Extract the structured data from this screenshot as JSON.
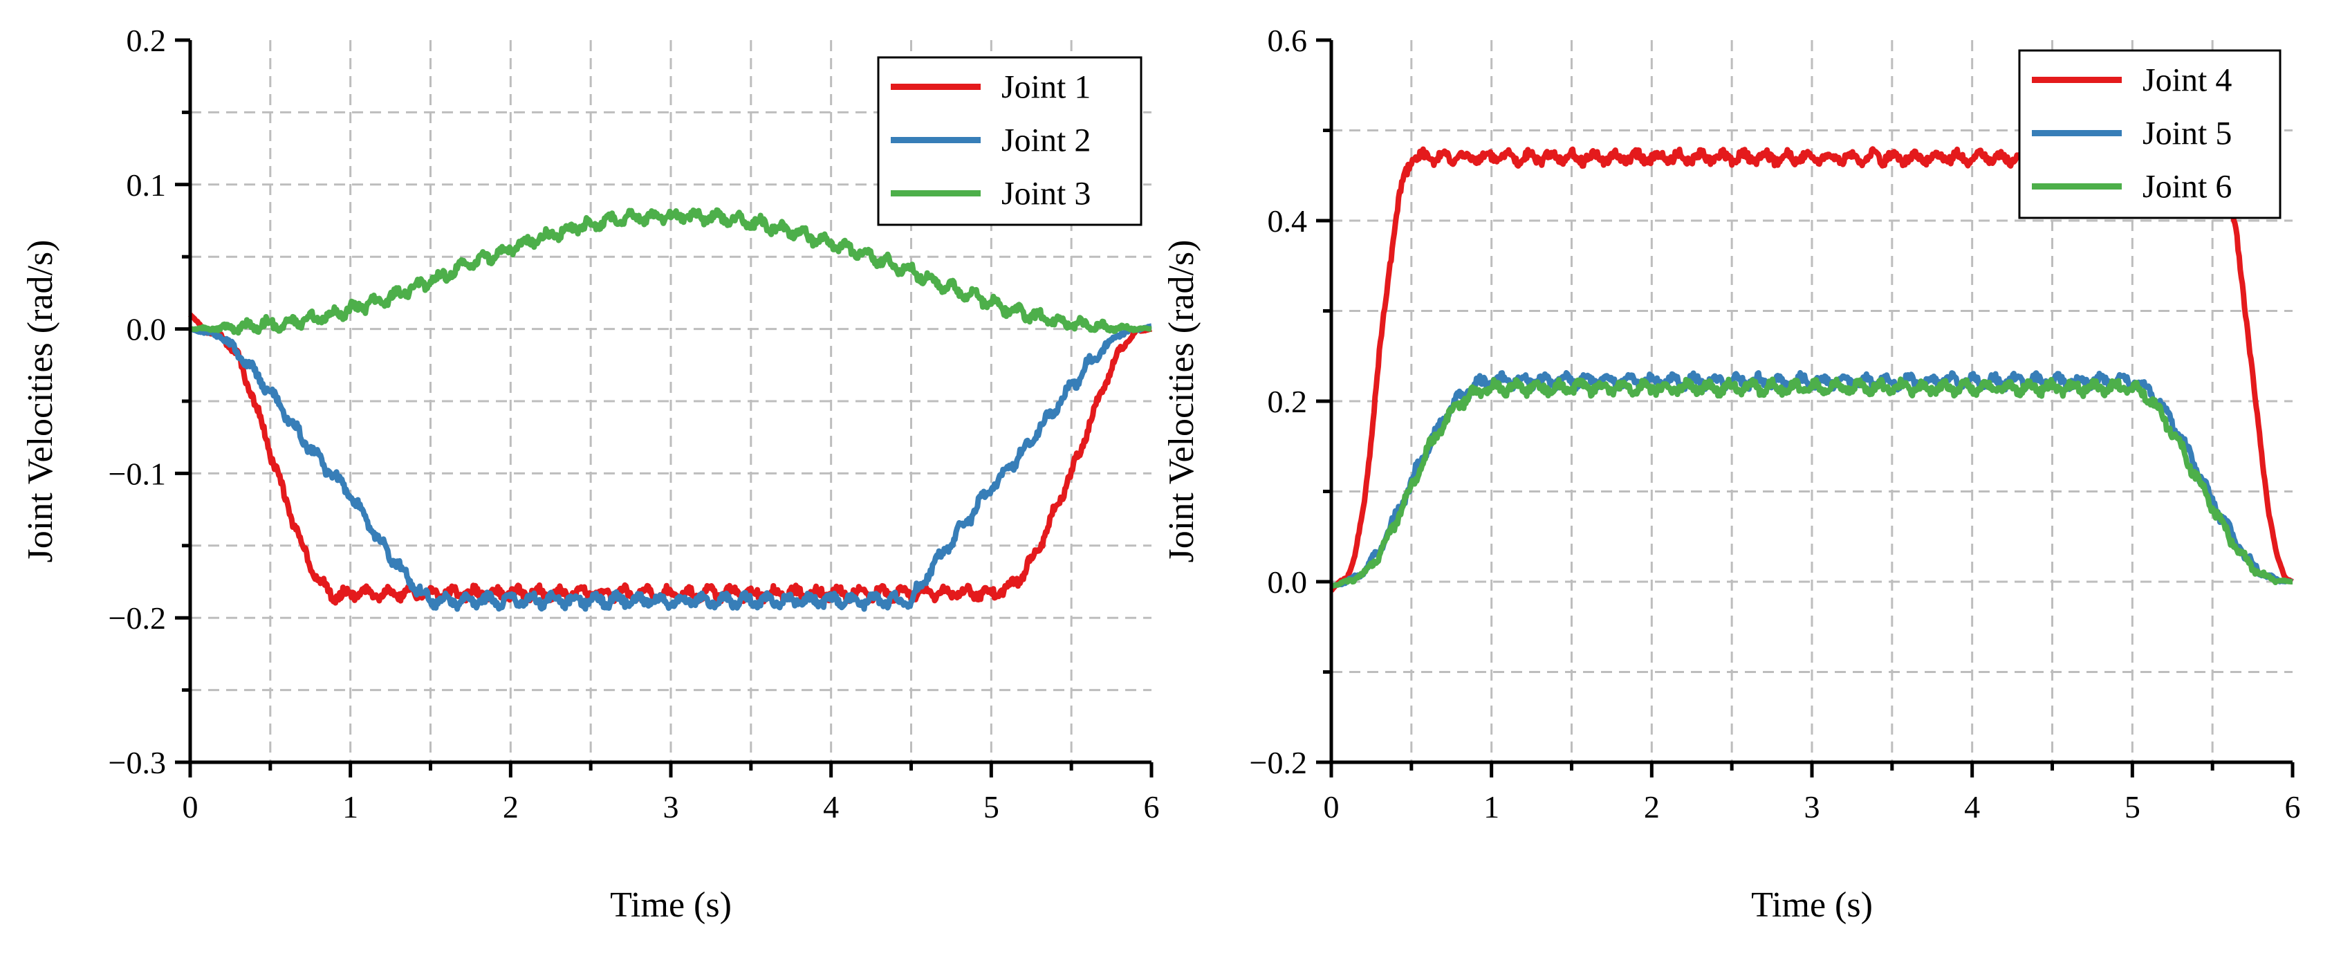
{
  "colors": {
    "joint1": "#e41a1c",
    "joint2": "#377eb8",
    "joint3": "#4daf4a",
    "grid": "#bdbdbd",
    "axis": "#000000"
  },
  "chart_data": [
    {
      "type": "line",
      "xlabel": "Time (s)",
      "ylabel": "Joint Velocities (rad/s)",
      "xlim": [
        0,
        6
      ],
      "ylim": [
        -0.3,
        0.2
      ],
      "xticks": [
        0,
        1,
        2,
        3,
        4,
        5,
        6
      ],
      "xtick_labels": [
        "0",
        "1",
        "2",
        "3",
        "4",
        "5",
        "6"
      ],
      "yticks": [
        -0.3,
        -0.2,
        -0.1,
        0.0,
        0.1,
        0.2
      ],
      "ytick_labels": [
        "−0.3",
        "−0.2",
        "−0.1",
        "0.0",
        "0.1",
        "0.2"
      ],
      "grid": true,
      "legend_position": "top-right",
      "series": [
        {
          "name": "Joint 1",
          "color": "#e41a1c",
          "x": [
            0,
            0.1,
            0.2,
            0.3,
            0.4,
            0.5,
            0.6,
            0.7,
            0.8,
            0.9,
            1.0,
            1.5,
            2.0,
            2.5,
            3.0,
            3.5,
            4.0,
            4.5,
            5.0,
            5.1,
            5.2,
            5.3,
            5.4,
            5.5,
            5.6,
            5.7,
            5.8,
            5.9,
            6.0
          ],
          "y": [
            0.01,
            -0.002,
            -0.005,
            -0.02,
            -0.05,
            -0.085,
            -0.12,
            -0.15,
            -0.175,
            -0.185,
            -0.183,
            -0.183,
            -0.183,
            -0.183,
            -0.183,
            -0.183,
            -0.183,
            -0.183,
            -0.183,
            -0.18,
            -0.17,
            -0.15,
            -0.125,
            -0.1,
            -0.07,
            -0.04,
            -0.015,
            -0.002,
            0.0
          ]
        },
        {
          "name": "Joint 2",
          "color": "#377eb8",
          "x": [
            0,
            0.2,
            0.4,
            0.6,
            0.8,
            1.0,
            1.2,
            1.4,
            1.5,
            2.0,
            2.5,
            3.0,
            3.5,
            4.0,
            4.5,
            4.6,
            4.8,
            5.0,
            5.2,
            5.4,
            5.6,
            5.8,
            6.0
          ],
          "y": [
            0.0,
            -0.005,
            -0.03,
            -0.06,
            -0.09,
            -0.115,
            -0.15,
            -0.178,
            -0.188,
            -0.188,
            -0.188,
            -0.188,
            -0.188,
            -0.188,
            -0.188,
            -0.17,
            -0.14,
            -0.11,
            -0.085,
            -0.055,
            -0.025,
            -0.003,
            0.002
          ]
        },
        {
          "name": "Joint 3",
          "color": "#4daf4a",
          "x": [
            0,
            0.3,
            0.6,
            0.9,
            1.2,
            1.5,
            1.8,
            2.1,
            2.4,
            2.7,
            3.0,
            3.3,
            3.6,
            3.9,
            4.2,
            4.5,
            4.8,
            5.1,
            5.4,
            5.7,
            6.0
          ],
          "y": [
            0.0,
            0.001,
            0.004,
            0.01,
            0.02,
            0.033,
            0.047,
            0.06,
            0.07,
            0.077,
            0.078,
            0.077,
            0.072,
            0.063,
            0.052,
            0.04,
            0.026,
            0.014,
            0.005,
            0.001,
            0.0
          ]
        }
      ]
    },
    {
      "type": "line",
      "xlabel": "Time (s)",
      "ylabel": "Joint Velocities (rad/s)",
      "xlim": [
        0,
        6
      ],
      "ylim": [
        -0.2,
        0.6
      ],
      "xticks": [
        0,
        1,
        2,
        3,
        4,
        5,
        6
      ],
      "xtick_labels": [
        "0",
        "1",
        "2",
        "3",
        "4",
        "5",
        "6"
      ],
      "yticks": [
        -0.2,
        0.0,
        0.2,
        0.4,
        0.6
      ],
      "ytick_labels": [
        "−0.2",
        "0.0",
        "0.2",
        "0.4",
        "0.6"
      ],
      "grid": true,
      "legend_position": "top-right",
      "series": [
        {
          "name": "Joint 4",
          "color": "#e41a1c",
          "x": [
            0,
            0.05,
            0.1,
            0.15,
            0.2,
            0.25,
            0.3,
            0.35,
            0.4,
            0.45,
            0.5,
            1.0,
            2.0,
            3.0,
            4.0,
            5.0,
            5.5,
            5.55,
            5.6,
            5.65,
            5.7,
            5.75,
            5.8,
            5.85,
            5.9,
            5.95,
            6.0
          ],
          "y": [
            -0.01,
            0.0,
            0.005,
            0.03,
            0.08,
            0.16,
            0.25,
            0.33,
            0.4,
            0.445,
            0.47,
            0.47,
            0.47,
            0.47,
            0.47,
            0.47,
            0.47,
            0.46,
            0.43,
            0.38,
            0.31,
            0.23,
            0.15,
            0.08,
            0.03,
            0.005,
            0.0
          ]
        },
        {
          "name": "Joint 5",
          "color": "#377eb8",
          "x": [
            0,
            0.1,
            0.2,
            0.3,
            0.4,
            0.5,
            0.6,
            0.7,
            0.8,
            0.9,
            1.0,
            2.0,
            3.0,
            4.0,
            5.0,
            5.1,
            5.2,
            5.3,
            5.4,
            5.5,
            5.6,
            5.7,
            5.8,
            5.9,
            6.0
          ],
          "y": [
            -0.005,
            0.0,
            0.01,
            0.035,
            0.07,
            0.11,
            0.15,
            0.18,
            0.205,
            0.218,
            0.222,
            0.222,
            0.222,
            0.222,
            0.222,
            0.215,
            0.19,
            0.16,
            0.125,
            0.09,
            0.058,
            0.03,
            0.01,
            0.002,
            0.0
          ]
        },
        {
          "name": "Joint 6",
          "color": "#4daf4a",
          "x": [
            0,
            0.1,
            0.2,
            0.3,
            0.4,
            0.5,
            0.6,
            0.7,
            0.8,
            0.9,
            1.0,
            2.0,
            3.0,
            4.0,
            5.0,
            5.1,
            5.2,
            5.3,
            5.4,
            5.5,
            5.6,
            5.7,
            5.8,
            5.9,
            6.0
          ],
          "y": [
            -0.005,
            0.0,
            0.008,
            0.03,
            0.065,
            0.105,
            0.145,
            0.175,
            0.198,
            0.21,
            0.215,
            0.215,
            0.215,
            0.215,
            0.215,
            0.205,
            0.18,
            0.15,
            0.115,
            0.082,
            0.052,
            0.026,
            0.008,
            0.001,
            0.0
          ]
        }
      ]
    }
  ]
}
